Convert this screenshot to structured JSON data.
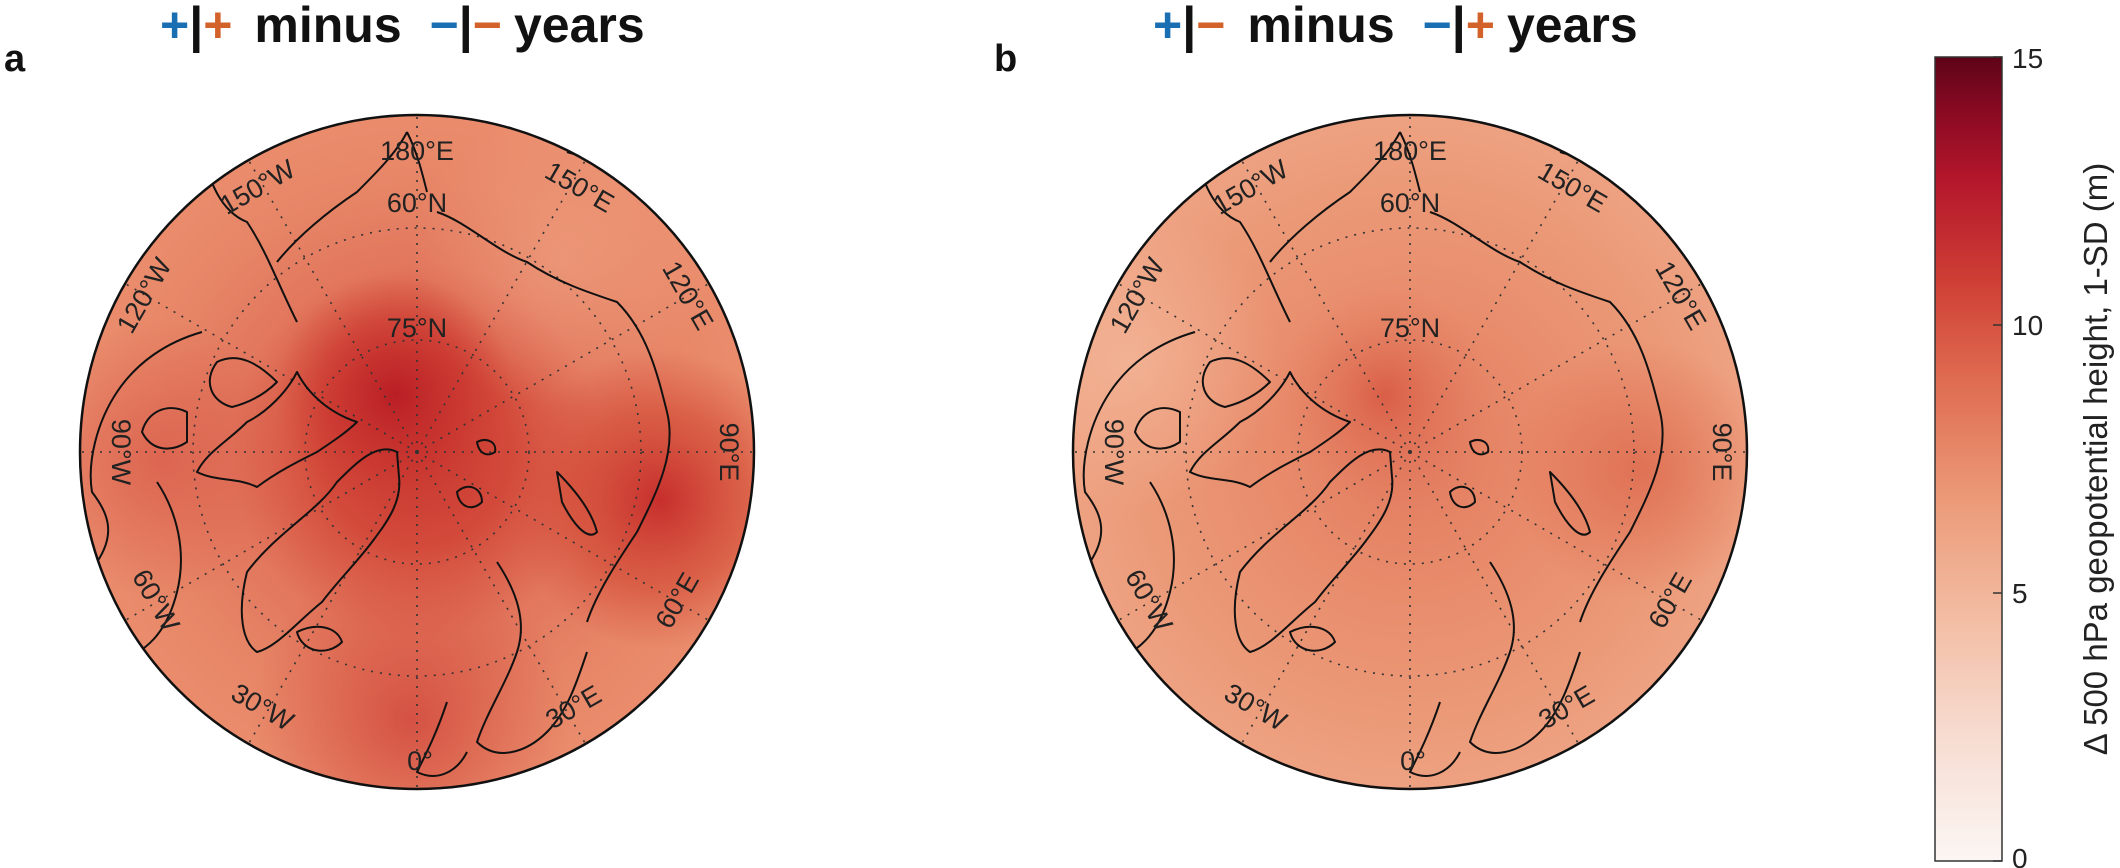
{
  "panels": [
    {
      "label": "a",
      "title": {
        "left_sign_1": "+",
        "left_sign_2": "+",
        "left_word": "minus",
        "right_sign_1": "−",
        "right_sign_2": "−",
        "right_word": "years"
      }
    },
    {
      "label": "b",
      "title": {
        "left_sign_1": "+",
        "left_sign_2": "−",
        "left_word": "minus",
        "right_sign_1": "−",
        "right_sign_2": "+",
        "right_word": "years"
      }
    }
  ],
  "map_labels": {
    "lat_60": "60°N",
    "lat_75": "75°N",
    "lon_180": "180°E",
    "lon_150e": "150°E",
    "lon_120e": "120°E",
    "lon_90e": "90°E",
    "lon_60e": "60°E",
    "lon_30e": "30°E",
    "lon_0": "0°",
    "lon_30w": "30°W",
    "lon_60w": "60°W",
    "lon_90w": "90°W",
    "lon_120w": "120°W",
    "lon_150w": "150°W"
  },
  "colorbar": {
    "label": "Δ 500 hPa geopotential height, 1-SD (m)",
    "ticks": [
      "0",
      "5",
      "10",
      "15"
    ],
    "min": 0,
    "max": 15
  },
  "colors": {
    "blue_sign": "#1a6fb3",
    "orange_sign": "#d2612a",
    "colormap_low": "#fbf6f4",
    "colormap_mid": "#e8866a",
    "colormap_high": "#67000d"
  }
}
